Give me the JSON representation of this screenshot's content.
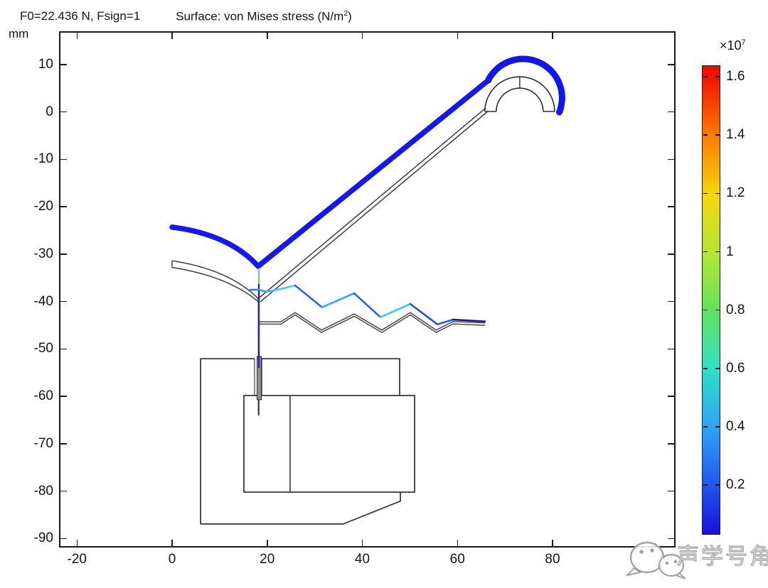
{
  "header": {
    "param_label": "F0=22.436 N, Fsign=1",
    "title_prefix": "Surface: von Mises stress (N/m",
    "title_sup": "2",
    "title_suffix": ")"
  },
  "watermark": {
    "text": "声学号角"
  },
  "chart_data": {
    "type": "fem-surface-stress-plot",
    "title": "Surface: von Mises stress (N/m2)",
    "parameter_annotation": "F0=22.436 N, Fsign=1",
    "x_axis": {
      "unit": "mm",
      "range": [
        -23.8,
        105.9
      ],
      "ticks": [
        {
          "v": -20,
          "label": "-20"
        },
        {
          "v": 0,
          "label": "0"
        },
        {
          "v": 20,
          "label": "20"
        },
        {
          "v": 40,
          "label": "40"
        },
        {
          "v": 60,
          "label": "60"
        },
        {
          "v": 80,
          "label": "80"
        }
      ]
    },
    "y_axis": {
      "unit": "mm",
      "range": [
        17.0,
        -91.9
      ],
      "ticks": [
        {
          "v": 10,
          "label": "10"
        },
        {
          "v": 0,
          "label": "0"
        },
        {
          "v": -10,
          "label": "-10"
        },
        {
          "v": -20,
          "label": "-20"
        },
        {
          "v": -30,
          "label": "-30"
        },
        {
          "v": -40,
          "label": "-40"
        },
        {
          "v": -50,
          "label": "-50"
        },
        {
          "v": -60,
          "label": "-60"
        },
        {
          "v": -70,
          "label": "-70"
        },
        {
          "v": -80,
          "label": "-80"
        },
        {
          "v": -90,
          "label": "-90"
        }
      ]
    },
    "colorbar": {
      "multiplier_prefix": "×10",
      "multiplier_sup": "7",
      "value_max": 1.639,
      "value_min": 0.03,
      "ticks": [
        {
          "v": 1.6,
          "label": "1.6"
        },
        {
          "v": 1.4,
          "label": "1.4"
        },
        {
          "v": 1.2,
          "label": "1.2"
        },
        {
          "v": 1.0,
          "label": "1"
        },
        {
          "v": 0.8,
          "label": "0.8"
        },
        {
          "v": 0.6,
          "label": "0.6"
        },
        {
          "v": 0.4,
          "label": "0.4"
        },
        {
          "v": 0.2,
          "label": "0.2"
        }
      ],
      "gradient": [
        {
          "p": 0.0,
          "c": "#ea1000"
        },
        {
          "p": 0.024,
          "c": "#f21300"
        },
        {
          "p": 0.151,
          "c": "#fb7d00"
        },
        {
          "p": 0.275,
          "c": "#f6d60f"
        },
        {
          "p": 0.399,
          "c": "#b5e635"
        },
        {
          "p": 0.522,
          "c": "#63e25c"
        },
        {
          "p": 0.646,
          "c": "#2fe0c8"
        },
        {
          "p": 0.772,
          "c": "#2fa4f8"
        },
        {
          "p": 0.894,
          "c": "#2456f0"
        },
        {
          "p": 1.0,
          "c": "#1611dc"
        }
      ]
    },
    "geometry": {
      "units": "mm",
      "undeformed": [
        {
          "name": "surround-outer",
          "kind": "quad",
          "p0": [
            0,
            -31.4
          ],
          "c": [
            12,
            -33.2
          ],
          "p1": [
            18.15,
            -39.4
          ],
          "stroke": "#3c3c3c",
          "w": 1.5
        },
        {
          "name": "surround-inner",
          "kind": "quad",
          "p0": [
            0,
            -32.8
          ],
          "c": [
            12,
            -34.7
          ],
          "p1": [
            18.35,
            -40.2
          ],
          "stroke": "#3c3c3c",
          "w": 1.5
        },
        {
          "name": "surround-left-cap",
          "kind": "polyline",
          "pts": [
            [
              0,
              -31.4
            ],
            [
              0,
              -32.8
            ]
          ],
          "stroke": "#3c3c3c",
          "w": 1.5
        },
        {
          "name": "cone-upper",
          "kind": "polyline",
          "pts": [
            [
              18.3,
              -39.2
            ],
            [
              65.9,
              0.8
            ]
          ],
          "stroke": "#3c3c3c",
          "w": 1.5
        },
        {
          "name": "cone-lower",
          "kind": "polyline",
          "pts": [
            [
              18.55,
              -40.05
            ],
            [
              66.35,
              0.1
            ]
          ],
          "stroke": "#3c3c3c",
          "w": 1.5
        },
        {
          "name": "dome-outer-arc",
          "kind": "arc",
          "c": [
            73.1,
            0.1
          ],
          "r": 7.33,
          "a0": 180,
          "a1": 0,
          "stroke": "#2e2e2e",
          "w": 1.6
        },
        {
          "name": "dome-inner-arc",
          "kind": "arc",
          "c": [
            73.1,
            0.1
          ],
          "r": 4.93,
          "a0": 180,
          "a1": 0,
          "stroke": "#2e2e2e",
          "w": 1.6
        },
        {
          "name": "dome-apex-line",
          "kind": "polyline",
          "pts": [
            [
              73.1,
              5.0
            ],
            [
              73.1,
              7.4
            ]
          ],
          "stroke": "#2e2e2e",
          "w": 1.4
        },
        {
          "name": "dome-base-left",
          "kind": "polyline",
          "pts": [
            [
              65.77,
              0.1
            ],
            [
              68.17,
              0.1
            ]
          ],
          "stroke": "#2e2e2e",
          "w": 1.4
        },
        {
          "name": "dome-base-right",
          "kind": "polyline",
          "pts": [
            [
              78.03,
              0.1
            ],
            [
              80.43,
              0.1
            ]
          ],
          "stroke": "#2e2e2e",
          "w": 1.4
        },
        {
          "name": "voice-coil-former",
          "kind": "polyline",
          "pts": [
            [
              18.2,
              -39.4
            ],
            [
              18.2,
              -64.0
            ]
          ],
          "stroke": "#222222",
          "w": 2
        },
        {
          "name": "spider-upper",
          "kind": "polyline",
          "pts": [
            [
              18.4,
              -44.25
            ],
            [
              22.9,
              -44.25
            ],
            [
              25.87,
              -42.3
            ],
            [
              31.4,
              -46.0
            ],
            [
              38.3,
              -42.6
            ],
            [
              44.1,
              -46.0
            ],
            [
              50.1,
              -42.3
            ],
            [
              55.5,
              -46.0
            ],
            [
              59.1,
              -44.2
            ],
            [
              65.8,
              -44.5
            ]
          ],
          "stroke": "#4a4a4a",
          "w": 1.5
        },
        {
          "name": "spider-lower",
          "kind": "polyline",
          "pts": [
            [
              18.4,
              -44.75
            ],
            [
              22.9,
              -44.75
            ],
            [
              25.87,
              -42.8
            ],
            [
              31.4,
              -46.5
            ],
            [
              38.3,
              -43.1
            ],
            [
              44.1,
              -46.5
            ],
            [
              50.1,
              -42.8
            ],
            [
              55.5,
              -46.5
            ],
            [
              59.1,
              -44.7
            ],
            [
              65.8,
              -45.0
            ]
          ],
          "stroke": "#4a4a4a",
          "w": 1.5
        },
        {
          "name": "yoke-outline-left",
          "kind": "polyline",
          "pts": [
            [
              17.35,
              -52.05
            ],
            [
              6.0,
              -52.05
            ],
            [
              6.0,
              -86.9
            ],
            [
              36.0,
              -86.9
            ],
            [
              48.0,
              -82.1
            ],
            [
              48.0,
              -80.1
            ]
          ],
          "stroke": "#383838",
          "w": 1.8
        },
        {
          "name": "yoke-outline-right",
          "kind": "polyline",
          "pts": [
            [
              18.85,
              -52.05
            ],
            [
              47.85,
              -52.05
            ],
            [
              47.85,
              -59.75
            ]
          ],
          "stroke": "#383838",
          "w": 1.8
        },
        {
          "name": "gap-wall-left",
          "kind": "polyline",
          "pts": [
            [
              17.35,
              -52.05
            ],
            [
              17.35,
              -59.75
            ]
          ],
          "stroke": "#383838",
          "w": 1.2
        },
        {
          "name": "gap-wall-right",
          "kind": "polyline",
          "pts": [
            [
              18.85,
              -52.05
            ],
            [
              18.85,
              -59.75
            ]
          ],
          "stroke": "#383838",
          "w": 1.2
        },
        {
          "name": "magnet-block",
          "kind": "polygon",
          "pts": [
            [
              15.1,
              -59.8
            ],
            [
              51.0,
              -59.8
            ],
            [
              51.0,
              -80.2
            ],
            [
              15.1,
              -80.2
            ]
          ],
          "stroke": "#383838",
          "w": 1.8
        },
        {
          "name": "magnet-divider",
          "kind": "polyline",
          "pts": [
            [
              24.8,
              -59.8
            ],
            [
              24.8,
              -80.2
            ]
          ],
          "stroke": "#383838",
          "w": 1.6
        },
        {
          "name": "coil-in-gap",
          "kind": "polygon",
          "pts": [
            [
              17.87,
              -51.6
            ],
            [
              18.77,
              -51.6
            ],
            [
              18.77,
              -60.7
            ],
            [
              17.87,
              -60.7
            ]
          ],
          "stroke": "#2a2a2a",
          "w": 1,
          "fill": "#8f8f8f"
        }
      ],
      "deformed": [
        {
          "name": "diaphragm-deformed",
          "kind": "path",
          "ops": [
            [
              "M",
              [
                0,
                -24.3
              ]
            ],
            [
              "Q",
              [
                12,
                -25.8
              ],
              [
                18.09,
                -32.56
              ]
            ],
            [
              "L",
              [
                66.5,
                6.68
              ]
            ]
          ],
          "stroke": "#1518e8",
          "w": 7.5,
          "cap": "round"
        },
        {
          "name": "dome-deformed",
          "kind": "arc",
          "c": [
            73.8,
            3.0
          ],
          "r": 8.2,
          "a0": 153.4,
          "a1": -21.8,
          "stroke": "#1216e6",
          "w": 9,
          "cap": "round"
        },
        {
          "name": "former-deformed-cyan",
          "kind": "polyline",
          "pts": [
            [
              18.25,
              -32.9
            ],
            [
              18.25,
              -34.4
            ]
          ],
          "stroke": "#3cc6f2",
          "w": 1.8
        },
        {
          "name": "former-deformed-green",
          "kind": "polyline",
          "pts": [
            [
              18.25,
              -34.4
            ],
            [
              18.25,
              -36.3
            ]
          ],
          "stroke": "#49d85c",
          "w": 1.8
        },
        {
          "name": "former-deformed-blue",
          "kind": "polyline",
          "pts": [
            [
              18.25,
              -36.3
            ],
            [
              18.25,
              -54.0
            ]
          ],
          "stroke": "#1a17e2",
          "w": 2.2
        },
        {
          "name": "spider-deformed-1",
          "kind": "polyline",
          "pts": [
            [
              16.45,
              -37.5
            ],
            [
              18.09,
              -37.5
            ]
          ],
          "stroke": "#2a6cf0",
          "w": 2.6,
          "cap": "round"
        },
        {
          "name": "spider-deformed-2",
          "kind": "polyline",
          "pts": [
            [
              18.09,
              -37.5
            ],
            [
              19.89,
              -37.9
            ]
          ],
          "stroke": "#2f9df5",
          "w": 2.6,
          "cap": "round"
        },
        {
          "name": "spider-deformed-3",
          "kind": "polyline",
          "pts": [
            [
              19.89,
              -37.9
            ],
            [
              21.68,
              -37.6
            ]
          ],
          "stroke": "#36b8f8",
          "w": 2.6,
          "cap": "round"
        },
        {
          "name": "spider-deformed-4",
          "kind": "polyline",
          "pts": [
            [
              21.68,
              -37.6
            ],
            [
              25.87,
              -36.6
            ]
          ],
          "stroke": "#41c9fa",
          "w": 2.6,
          "cap": "round"
        },
        {
          "name": "spider-deformed-5",
          "kind": "polyline",
          "pts": [
            [
              25.87,
              -36.6
            ],
            [
              31.55,
              -41.2
            ]
          ],
          "stroke": "#2a62ec",
          "w": 2.6,
          "cap": "round"
        },
        {
          "name": "spider-deformed-6",
          "kind": "polyline",
          "pts": [
            [
              31.55,
              -41.2
            ],
            [
              38.28,
              -38.25
            ]
          ],
          "stroke": "#34aaf6",
          "w": 2.6,
          "cap": "round"
        },
        {
          "name": "spider-deformed-7",
          "kind": "polyline",
          "pts": [
            [
              38.28,
              -38.25
            ],
            [
              43.81,
              -43.3
            ]
          ],
          "stroke": "#2a62ec",
          "w": 2.6,
          "cap": "round"
        },
        {
          "name": "spider-deformed-8",
          "kind": "polyline",
          "pts": [
            [
              43.81,
              -43.3
            ],
            [
              50.09,
              -40.5
            ]
          ],
          "stroke": "#3fc6fa",
          "w": 2.6,
          "cap": "round"
        },
        {
          "name": "spider-deformed-9",
          "kind": "polyline",
          "pts": [
            [
              50.09,
              -40.5
            ],
            [
              55.78,
              -44.8
            ]
          ],
          "stroke": "#2452e6",
          "w": 2.6,
          "cap": "round"
        },
        {
          "name": "spider-deformed-10",
          "kind": "polyline",
          "pts": [
            [
              55.78,
              -44.8
            ],
            [
              59.07,
              -43.8
            ]
          ],
          "stroke": "#2a5cea",
          "w": 2.6,
          "cap": "round"
        },
        {
          "name": "spider-deformed-11",
          "kind": "polyline",
          "pts": [
            [
              59.07,
              -43.8
            ],
            [
              65.8,
              -44.2
            ]
          ],
          "stroke": "#1a1a80",
          "w": 2.6,
          "cap": "round"
        }
      ]
    }
  }
}
